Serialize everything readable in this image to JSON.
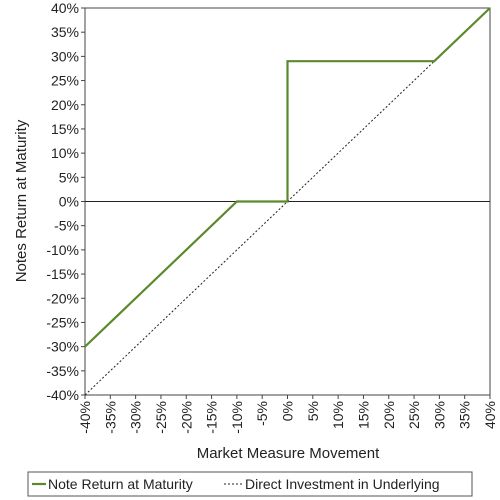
{
  "chart_data": {
    "type": "line",
    "title": "",
    "xlabel": "Market Measure Movement",
    "ylabel": "Notes Return at Maturity",
    "xlim": [
      -40,
      40
    ],
    "ylim": [
      -40,
      40
    ],
    "x_ticks": [
      "-40%",
      "-35%",
      "-30%",
      "-25%",
      "-20%",
      "-15%",
      "-10%",
      "-5%",
      "0%",
      "5%",
      "10%",
      "15%",
      "20%",
      "25%",
      "30%",
      "35%",
      "40%"
    ],
    "y_ticks": [
      "40%",
      "35%",
      "30%",
      "25%",
      "20%",
      "15%",
      "10%",
      "5%",
      "0%",
      "-5%",
      "-10%",
      "-15%",
      "-20%",
      "-25%",
      "-30%",
      "-35%",
      "-40%"
    ],
    "grid": false,
    "legend_position": "bottom",
    "series": [
      {
        "name": "Note Return at Maturity",
        "color": "#5a8a2b",
        "style": "solid",
        "x": [
          -40,
          -10,
          0,
          0,
          29,
          40
        ],
        "y": [
          -30,
          0,
          0,
          29,
          29,
          40
        ]
      },
      {
        "name": "Direct Investment in Underlying",
        "color": "#222222",
        "style": "dotted",
        "x": [
          -40,
          40
        ],
        "y": [
          -40,
          40
        ]
      }
    ]
  }
}
